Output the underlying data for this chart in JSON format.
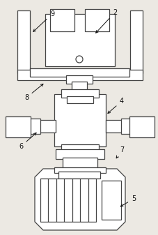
{
  "bg_color": "#ece9e3",
  "lc": "#444444",
  "lw": 0.9,
  "fig_w": 2.28,
  "fig_h": 3.37,
  "dpi": 100
}
